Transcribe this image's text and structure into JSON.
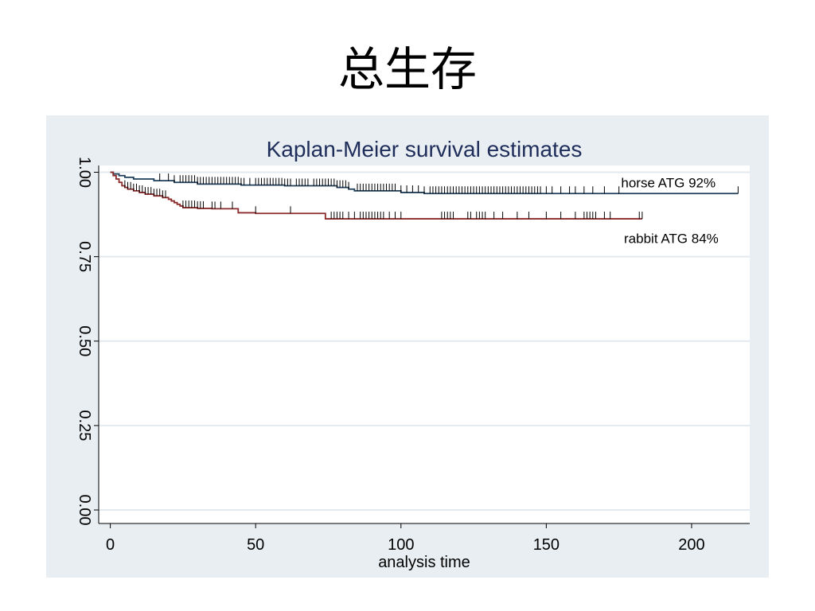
{
  "slide": {
    "title": "总生存"
  },
  "chart_data": {
    "type": "line",
    "step": true,
    "title": "Kaplan-Meier survival estimates",
    "xlabel": "analysis time",
    "ylabel": "",
    "xlim": [
      -4,
      220
    ],
    "ylim": [
      -0.04,
      1.02
    ],
    "x_ticks": [
      0,
      50,
      100,
      150,
      200
    ],
    "y_ticks": [
      0.0,
      0.25,
      0.5,
      0.75,
      1.0
    ],
    "y_tick_labels": [
      "0.00",
      "0.25",
      "0.50",
      "0.75",
      "1.00"
    ],
    "grid": "horizontal",
    "series": [
      {
        "name": "horse ATG 92%",
        "color": "#1f3e5a",
        "points": [
          [
            0,
            1.0
          ],
          [
            1,
            0.995
          ],
          [
            3,
            0.99
          ],
          [
            5,
            0.985
          ],
          [
            8,
            0.98
          ],
          [
            15,
            0.975
          ],
          [
            22,
            0.97
          ],
          [
            30,
            0.965
          ],
          [
            45,
            0.962
          ],
          [
            60,
            0.96
          ],
          [
            78,
            0.955
          ],
          [
            82,
            0.95
          ],
          [
            84,
            0.945
          ],
          [
            100,
            0.94
          ],
          [
            108,
            0.937
          ],
          [
            216,
            0.937
          ]
        ],
        "censor_times": [
          17,
          20,
          22,
          24,
          25,
          26,
          27,
          28,
          29,
          30,
          31,
          32,
          33,
          34,
          35,
          36,
          37,
          38,
          39,
          40,
          41,
          42,
          43,
          44,
          45,
          46,
          48,
          50,
          51,
          52,
          53,
          54,
          55,
          56,
          57,
          58,
          59,
          60,
          61,
          62,
          64,
          65,
          66,
          67,
          68,
          70,
          71,
          72,
          73,
          74,
          75,
          76,
          77,
          78,
          79,
          80,
          81,
          82,
          85,
          86,
          87,
          88,
          89,
          90,
          91,
          92,
          93,
          94,
          95,
          96,
          97,
          98,
          100,
          102,
          104,
          106,
          108,
          110,
          111,
          112,
          113,
          114,
          115,
          116,
          117,
          118,
          119,
          120,
          121,
          122,
          123,
          124,
          125,
          126,
          127,
          128,
          129,
          130,
          131,
          132,
          133,
          134,
          135,
          136,
          137,
          138,
          139,
          140,
          141,
          142,
          143,
          144,
          145,
          146,
          147,
          148,
          150,
          152,
          155,
          158,
          160,
          163,
          166,
          170,
          175,
          216
        ]
      },
      {
        "name": "rabbit ATG 84%",
        "color": "#8b2a2a",
        "points": [
          [
            0,
            1.0
          ],
          [
            1,
            0.99
          ],
          [
            2,
            0.98
          ],
          [
            3,
            0.97
          ],
          [
            4,
            0.96
          ],
          [
            5,
            0.955
          ],
          [
            6,
            0.95
          ],
          [
            8,
            0.945
          ],
          [
            10,
            0.94
          ],
          [
            12,
            0.935
          ],
          [
            15,
            0.93
          ],
          [
            18,
            0.925
          ],
          [
            20,
            0.92
          ],
          [
            21,
            0.915
          ],
          [
            22,
            0.91
          ],
          [
            23,
            0.905
          ],
          [
            24,
            0.9
          ],
          [
            25,
            0.895
          ],
          [
            30,
            0.893
          ],
          [
            35,
            0.892
          ],
          [
            44,
            0.88
          ],
          [
            50,
            0.878
          ],
          [
            62,
            0.878
          ],
          [
            74,
            0.862
          ],
          [
            183,
            0.862
          ]
        ],
        "censor_times": [
          5,
          6,
          7,
          8,
          9,
          10,
          11,
          12,
          13,
          14,
          15,
          16,
          17,
          18,
          19,
          25,
          26,
          27,
          28,
          29,
          30,
          31,
          32,
          35,
          36,
          38,
          42,
          50,
          62,
          76,
          77,
          78,
          79,
          80,
          82,
          84,
          86,
          87,
          88,
          89,
          90,
          91,
          92,
          93,
          94,
          96,
          98,
          100,
          114,
          115,
          116,
          117,
          118,
          123,
          124,
          126,
          127,
          128,
          129,
          132,
          135,
          140,
          144,
          150,
          155,
          160,
          163,
          164,
          165,
          166,
          167,
          170,
          172,
          182,
          183
        ]
      }
    ],
    "annotations": [
      {
        "text": "horse ATG 92%",
        "x": 192,
        "y": 0.955
      },
      {
        "text": "rabbit ATG 84%",
        "x": 193,
        "y": 0.79
      }
    ]
  }
}
